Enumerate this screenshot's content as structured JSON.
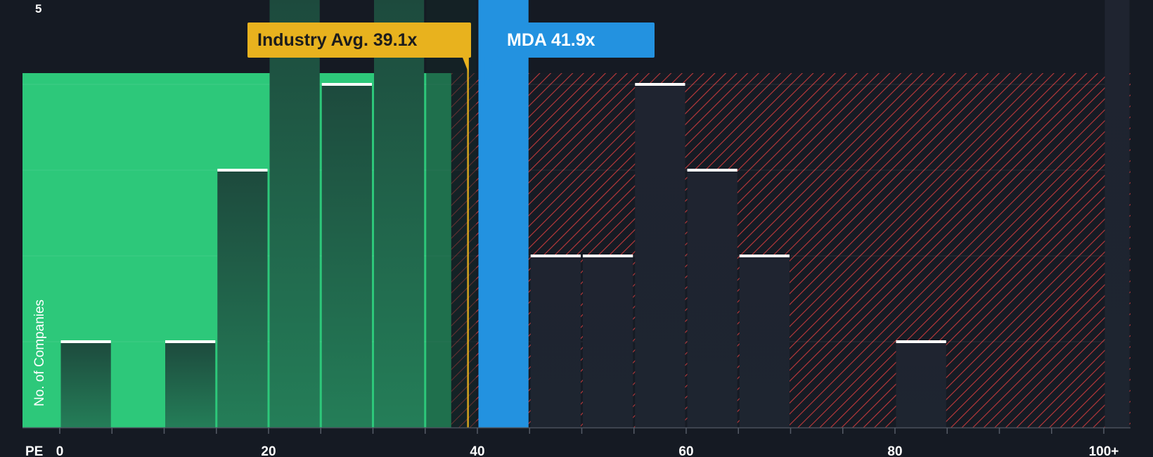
{
  "chart_data": {
    "type": "bar",
    "title": "",
    "xlabel": "PE",
    "ylabel": "No. of Companies",
    "xlim": [
      0,
      103
    ],
    "ylim": [
      0,
      5
    ],
    "x_ticks": [
      {
        "value": 0,
        "label": "0"
      },
      {
        "value": 20,
        "label": "20"
      },
      {
        "value": 40,
        "label": "40"
      },
      {
        "value": 60,
        "label": "60"
      },
      {
        "value": 80,
        "label": "80"
      },
      {
        "value": 100,
        "label": "100+"
      }
    ],
    "y_tick_labels": [
      {
        "value": 5,
        "label": "5"
      }
    ],
    "bins": [
      {
        "start": 0,
        "end": 5,
        "count": 1
      },
      {
        "start": 10,
        "end": 15,
        "count": 1
      },
      {
        "start": 15,
        "end": 20,
        "count": 3
      },
      {
        "start": 20,
        "end": 25,
        "count": 5
      },
      {
        "start": 25,
        "end": 30,
        "count": 4
      },
      {
        "start": 30,
        "end": 35,
        "count": 5
      },
      {
        "start": 35,
        "end": 40,
        "count": 5
      },
      {
        "start": 40,
        "end": 45,
        "count": 5,
        "highlight": true
      },
      {
        "start": 45,
        "end": 50,
        "count": 2
      },
      {
        "start": 50,
        "end": 55,
        "count": 2
      },
      {
        "start": 55,
        "end": 60,
        "count": 4
      },
      {
        "start": 60,
        "end": 65,
        "count": 3
      },
      {
        "start": 65,
        "end": 70,
        "count": 2
      },
      {
        "start": 80,
        "end": 85,
        "count": 1
      },
      {
        "start": 100,
        "end": 103,
        "count": 5
      }
    ],
    "fair_zone_end": 37.5,
    "industry_avg": {
      "value": 39.1,
      "label": "Industry Avg. 39.1x"
    },
    "company": {
      "name": "MDA",
      "value": 41.9,
      "label": "MDA 41.9x"
    },
    "colors": {
      "background": "#151a23",
      "good_zone": "#2dc87a",
      "bad_hatch": "#c0393b",
      "industry": "#e8b21e",
      "company": "#2392e0"
    }
  }
}
